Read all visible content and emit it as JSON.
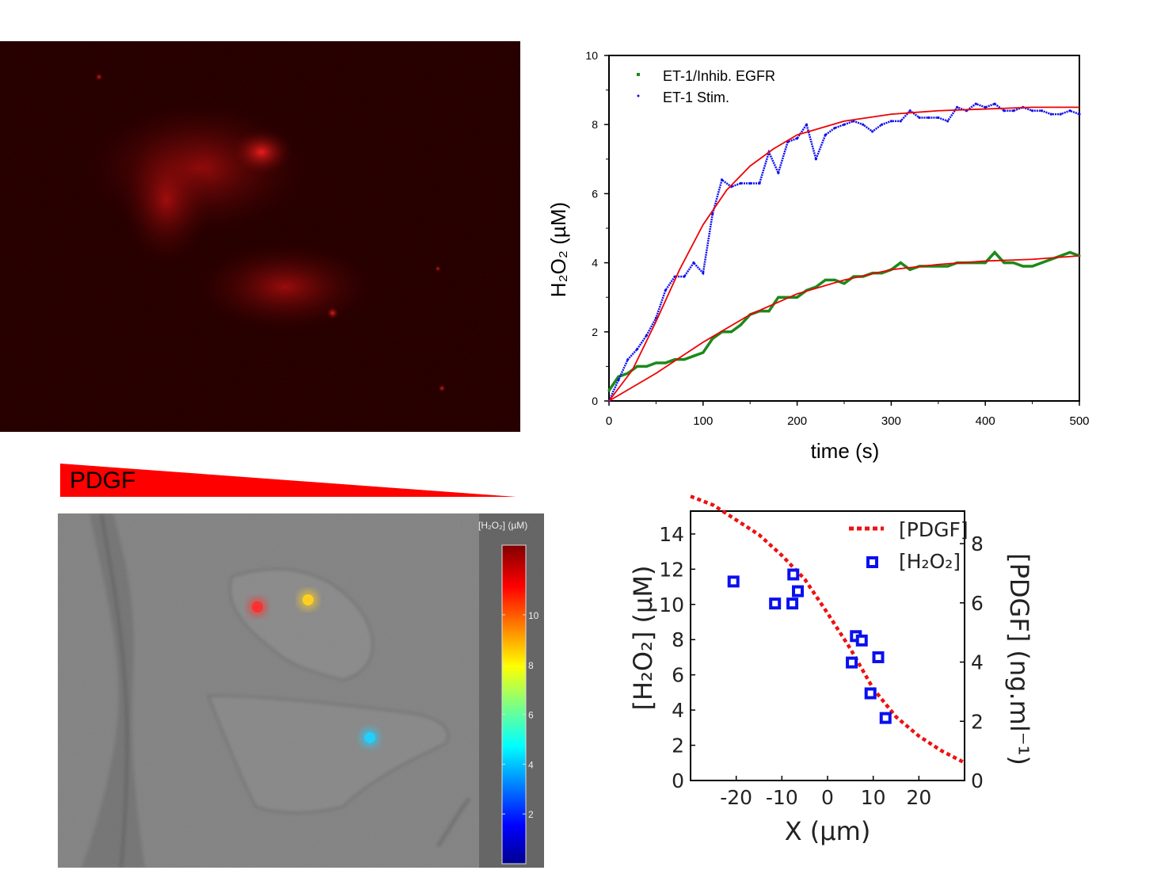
{
  "panel_a": {
    "image": "red fluorescence micrograph of cells"
  },
  "panel_c": {
    "gradient_label": "PDGF",
    "colorbar_label": "[H₂O₂] (µM)",
    "colorbar_ticks": [
      "2",
      "4",
      "6",
      "8",
      "10"
    ],
    "colorbar_range": [
      0,
      12.8
    ],
    "spots": [
      {
        "color": "#ff3030",
        "value": 11
      },
      {
        "color": "#ffd020",
        "value": 8.5
      },
      {
        "color": "#20d0ff",
        "value": 4.3
      }
    ]
  },
  "chart_data": [
    {
      "type": "line",
      "xlabel": "time (s)",
      "ylabel": "H₂O₂ (µM)",
      "xlim": [
        0,
        500
      ],
      "ylim": [
        0,
        10
      ],
      "xticks": [
        "0",
        "100",
        "200",
        "300",
        "400",
        "500"
      ],
      "yticks": [
        "0",
        "2",
        "4",
        "6",
        "8",
        "10"
      ],
      "legend_position": "top-left",
      "grid": false,
      "x": [
        0,
        10,
        20,
        30,
        40,
        50,
        60,
        70,
        80,
        90,
        100,
        110,
        120,
        130,
        140,
        150,
        160,
        170,
        180,
        190,
        200,
        210,
        220,
        230,
        240,
        250,
        260,
        270,
        280,
        290,
        300,
        310,
        320,
        330,
        340,
        350,
        360,
        370,
        380,
        390,
        400,
        410,
        420,
        430,
        440,
        450,
        460,
        470,
        480,
        490,
        500
      ],
      "series": [
        {
          "name": "ET-1/Inhib. EGFR",
          "color": "#1a8a1a",
          "marker": "square",
          "values": [
            0.3,
            0.7,
            0.8,
            1.0,
            1.0,
            1.1,
            1.1,
            1.2,
            1.2,
            1.3,
            1.4,
            1.8,
            2.0,
            2.0,
            2.2,
            2.5,
            2.6,
            2.6,
            3.0,
            3.0,
            3.0,
            3.2,
            3.3,
            3.5,
            3.5,
            3.4,
            3.6,
            3.6,
            3.7,
            3.7,
            3.8,
            4.0,
            3.8,
            3.9,
            3.9,
            3.9,
            3.9,
            4.0,
            4.0,
            4.0,
            4.0,
            4.3,
            4.0,
            4.0,
            3.9,
            3.9,
            4.0,
            4.1,
            4.2,
            4.3,
            4.2
          ]
        },
        {
          "name": "ET-1 Stim.",
          "color": "#1010ee",
          "marker": "dot",
          "values": [
            0,
            0.6,
            1.2,
            1.5,
            1.9,
            2.4,
            3.2,
            3.6,
            3.6,
            4.0,
            3.7,
            5.4,
            6.4,
            6.2,
            6.3,
            6.3,
            6.3,
            7.2,
            6.6,
            7.5,
            7.6,
            8.0,
            7.0,
            7.7,
            7.9,
            8.0,
            8.1,
            8.0,
            7.8,
            8.0,
            8.1,
            8.1,
            8.4,
            8.2,
            8.2,
            8.2,
            8.1,
            8.5,
            8.4,
            8.6,
            8.5,
            8.6,
            8.4,
            8.4,
            8.5,
            8.4,
            8.4,
            8.3,
            8.3,
            8.4,
            8.3
          ]
        }
      ],
      "fits": [
        {
          "color": "#ee0000",
          "x": [
            0,
            25,
            50,
            75,
            100,
            125,
            150,
            175,
            200,
            250,
            300,
            350,
            400,
            450,
            500
          ],
          "values": [
            0,
            0.9,
            2.3,
            3.8,
            5.1,
            6.1,
            6.8,
            7.3,
            7.7,
            8.1,
            8.3,
            8.4,
            8.45,
            8.5,
            8.5
          ]
        },
        {
          "color": "#ee0000",
          "x": [
            0,
            50,
            100,
            150,
            200,
            250,
            300,
            350,
            400,
            450,
            500
          ],
          "values": [
            0,
            0.8,
            1.7,
            2.5,
            3.1,
            3.5,
            3.8,
            3.95,
            4.05,
            4.1,
            4.2
          ]
        }
      ]
    },
    {
      "type": "scatter",
      "xlabel": "X (µm)",
      "ylabel": "[H₂O₂] (µM)",
      "ylabel_right": "[PDGF] (ng.ml⁻¹)",
      "xlim": [
        -30,
        30
      ],
      "ylim": [
        0,
        15.3
      ],
      "ylim_right": [
        0,
        9.1
      ],
      "xticks": [
        "-20",
        "-10",
        "0",
        "10",
        "20"
      ],
      "yticks": [
        "0",
        "2",
        "4",
        "6",
        "8",
        "10",
        "12",
        "14"
      ],
      "yticks_right": [
        "0",
        "2",
        "4",
        "6",
        "8"
      ],
      "legend_position": "top-right",
      "grid": false,
      "series": [
        {
          "name": "[PDGF]",
          "color": "#ee1111",
          "style": "dotted",
          "axis": "right",
          "x": [
            -30,
            -25,
            -20,
            -15,
            -10,
            -5,
            0,
            5,
            10,
            15,
            20,
            25,
            30
          ],
          "values": [
            9.6,
            9.3,
            8.8,
            8.3,
            7.6,
            6.8,
            5.65,
            4.45,
            3.1,
            2.15,
            1.5,
            1.0,
            0.6
          ]
        },
        {
          "name": "[H₂O₂]",
          "color": "#0a10ee",
          "marker": "open-square",
          "axis": "left",
          "x": [
            -20.6,
            -11.5,
            -7.7,
            -7.5,
            -6.5,
            6.2,
            7.5,
            5.3,
            11.1,
            9.4,
            12.7
          ],
          "values": [
            11.3,
            10.05,
            10.05,
            11.7,
            10.75,
            8.2,
            7.95,
            6.7,
            7.0,
            4.95,
            3.55
          ]
        }
      ]
    }
  ]
}
